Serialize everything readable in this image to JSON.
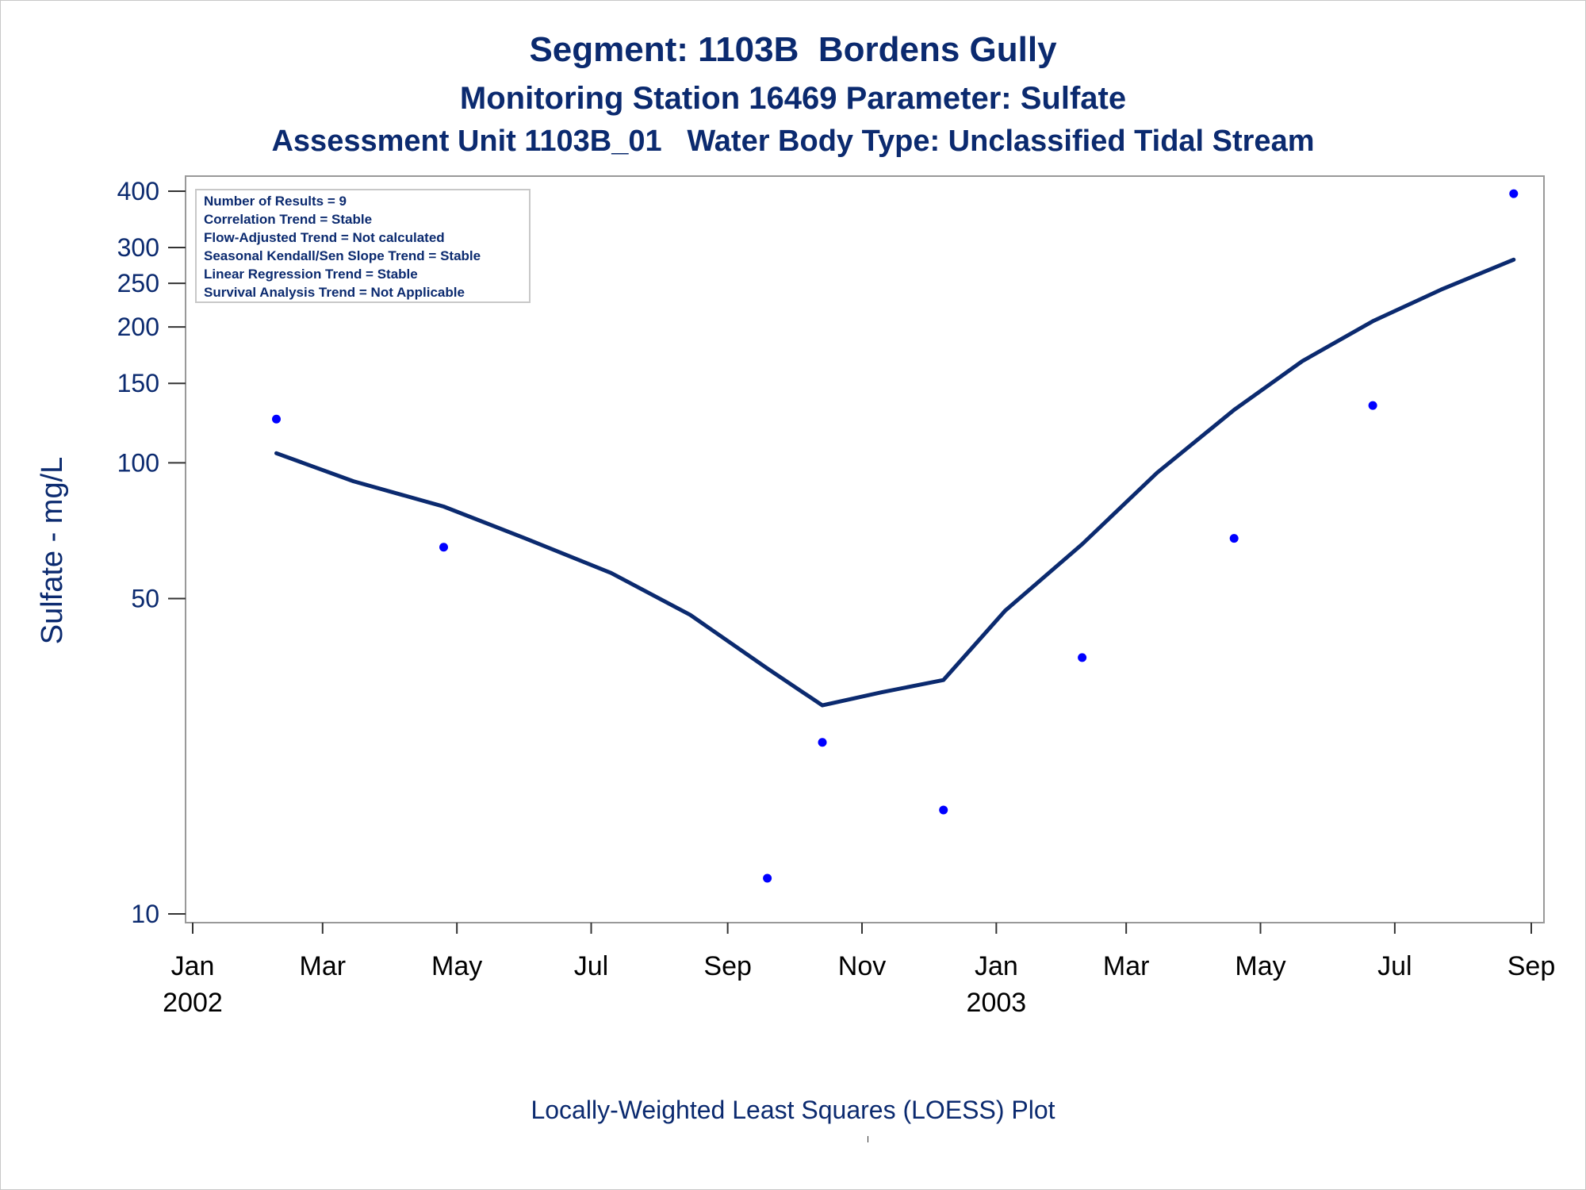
{
  "titles": {
    "line1": "Segment: 1103B  Bordens Gully",
    "line2": "Monitoring Station 16469 Parameter: Sulfate",
    "line3": "Assessment Unit 1103B_01   Water Body Type: Unclassified Tidal Stream"
  },
  "footnote": "Locally-Weighted Least Squares (LOESS) Plot",
  "stats_box": [
    "Number of Results = 9",
    "Correlation Trend = Stable",
    "Flow-Adjusted Trend = Not calculated",
    "Seasonal Kendall/Sen Slope Trend = Stable",
    "Linear Regression Trend = Stable",
    "Survival Analysis Trend = Not Applicable"
  ],
  "colors": {
    "text": "#0b2a6f",
    "points": "#0000ff",
    "loess_line": "#0b2a6f",
    "frame": "#999999"
  },
  "chart_data": {
    "type": "scatter",
    "ylabel": "Sulfate - mg/L",
    "xlabel": "",
    "yscale": "log",
    "ylim": [
      9.5,
      420
    ],
    "xlim": [
      "2002-01-01",
      "2003-09-01"
    ],
    "grid": false,
    "yticks": [
      10,
      50,
      100,
      150,
      200,
      250,
      300,
      400
    ],
    "xticks": [
      {
        "date": "2002-01-01",
        "label": "Jan",
        "year": "2002"
      },
      {
        "date": "2002-03-01",
        "label": "Mar",
        "year": ""
      },
      {
        "date": "2002-05-01",
        "label": "May",
        "year": ""
      },
      {
        "date": "2002-07-01",
        "label": "Jul",
        "year": ""
      },
      {
        "date": "2002-09-01",
        "label": "Sep",
        "year": ""
      },
      {
        "date": "2002-11-01",
        "label": "Nov",
        "year": ""
      },
      {
        "date": "2003-01-01",
        "label": "Jan",
        "year": "2003"
      },
      {
        "date": "2003-03-01",
        "label": "Mar",
        "year": ""
      },
      {
        "date": "2003-05-01",
        "label": "May",
        "year": ""
      },
      {
        "date": "2003-07-01",
        "label": "Jul",
        "year": ""
      },
      {
        "date": "2003-09-01",
        "label": "Sep",
        "year": ""
      }
    ],
    "series": [
      {
        "kind": "points",
        "x": [
          "2002-02-08",
          "2002-04-25",
          "2002-09-19",
          "2002-10-14",
          "2002-12-08",
          "2003-02-09",
          "2003-04-19",
          "2003-06-21",
          "2003-08-24"
        ],
        "y": [
          125,
          65,
          12,
          24,
          17,
          37,
          68,
          134,
          395
        ]
      },
      {
        "kind": "loess",
        "x": [
          "2002-02-08",
          "2002-03-15",
          "2002-04-25",
          "2002-06-01",
          "2002-07-10",
          "2002-08-15",
          "2002-09-19",
          "2002-10-14",
          "2002-11-10",
          "2002-12-08",
          "2003-01-05",
          "2003-02-09",
          "2003-03-15",
          "2003-04-19",
          "2003-05-20",
          "2003-06-21",
          "2003-07-22",
          "2003-08-24"
        ],
        "y": [
          105,
          91,
          80,
          68,
          57,
          46,
          35,
          29,
          31,
          33,
          47,
          66,
          95,
          131,
          168,
          206,
          242,
          282
        ]
      }
    ]
  }
}
